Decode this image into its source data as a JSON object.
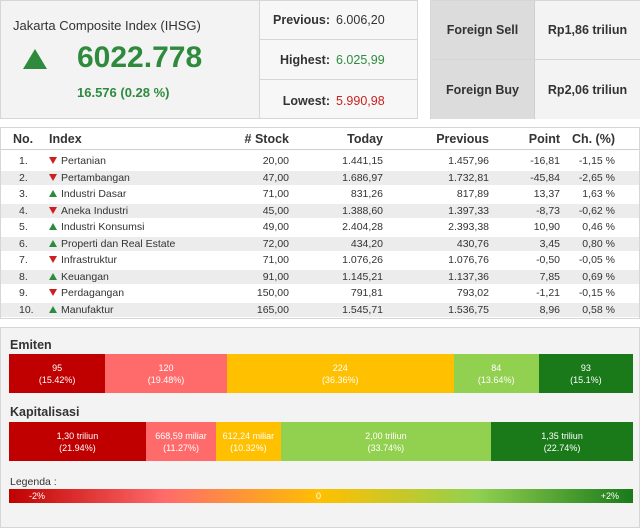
{
  "index": {
    "title": "Jakarta Composite Index (IHSG)",
    "value": "6022.778",
    "change": "16.576 (0.28 %)",
    "direction": "up"
  },
  "stats": [
    {
      "label": "Previous:",
      "value": "6.006,20",
      "color": "#333333"
    },
    {
      "label": "Highest:",
      "value": "6.025,99",
      "color": "#2e8b3d"
    },
    {
      "label": "Lowest:",
      "value": "5.990,98",
      "color": "#cc1f1f"
    }
  ],
  "foreign": [
    {
      "label": "Foreign Sell",
      "value": "Rp1,86 triliun"
    },
    {
      "label": "Foreign Buy",
      "value": "Rp2,06 triliun"
    }
  ],
  "table": {
    "headers": {
      "no": "No.",
      "index": "Index",
      "stock": "# Stock",
      "today": "Today",
      "previous": "Previous",
      "point": "Point",
      "change": "Ch. (%)"
    },
    "rows": [
      {
        "no": "1.",
        "dir": "down",
        "name": "Pertanian",
        "stock": "20,00",
        "today": "1.441,15",
        "previous": "1.457,96",
        "point": "-16,81",
        "change": "-1,15 %"
      },
      {
        "no": "2.",
        "dir": "down",
        "name": "Pertambangan",
        "stock": "47,00",
        "today": "1.686,97",
        "previous": "1.732,81",
        "point": "-45,84",
        "change": "-2,65 %"
      },
      {
        "no": "3.",
        "dir": "up",
        "name": "Industri Dasar",
        "stock": "71,00",
        "today": "831,26",
        "previous": "817,89",
        "point": "13,37",
        "change": "1,63 %"
      },
      {
        "no": "4.",
        "dir": "down",
        "name": "Aneka Industri",
        "stock": "45,00",
        "today": "1.388,60",
        "previous": "1.397,33",
        "point": "-8,73",
        "change": "-0,62 %"
      },
      {
        "no": "5.",
        "dir": "up",
        "name": "Industri Konsumsi",
        "stock": "49,00",
        "today": "2.404,28",
        "previous": "2.393,38",
        "point": "10,90",
        "change": "0,46 %"
      },
      {
        "no": "6.",
        "dir": "up",
        "name": "Properti dan Real Estate",
        "stock": "72,00",
        "today": "434,20",
        "previous": "430,76",
        "point": "3,45",
        "change": "0,80 %"
      },
      {
        "no": "7.",
        "dir": "down",
        "name": "Infrastruktur",
        "stock": "71,00",
        "today": "1.076,26",
        "previous": "1.076,76",
        "point": "-0,50",
        "change": "-0,05 %"
      },
      {
        "no": "8.",
        "dir": "up",
        "name": "Keuangan",
        "stock": "91,00",
        "today": "1.145,21",
        "previous": "1.137,36",
        "point": "7,85",
        "change": "0,69 %"
      },
      {
        "no": "9.",
        "dir": "down",
        "name": "Perdagangan",
        "stock": "150,00",
        "today": "791,81",
        "previous": "793,02",
        "point": "-1,21",
        "change": "-0,15 %"
      },
      {
        "no": "10.",
        "dir": "up",
        "name": "Manufaktur",
        "stock": "165,00",
        "today": "1.545,71",
        "previous": "1.536,75",
        "point": "8,96",
        "change": "0,58 %"
      }
    ]
  },
  "emiten": {
    "title": "Emiten",
    "segments": [
      {
        "value": "95",
        "pct": "(15.42%)",
        "share": 15.42,
        "color": "#c00000"
      },
      {
        "value": "120",
        "pct": "(19.48%)",
        "share": 19.48,
        "color": "#ff6b6b"
      },
      {
        "value": "224",
        "pct": "(36.36%)",
        "share": 36.36,
        "color": "#ffc000"
      },
      {
        "value": "84",
        "pct": "(13.64%)",
        "share": 13.64,
        "color": "#92d050"
      },
      {
        "value": "93",
        "pct": "(15.1%)",
        "share": 15.1,
        "color": "#1a7a1a"
      }
    ]
  },
  "kapitalisasi": {
    "title": "Kapitalisasi",
    "segments": [
      {
        "value": "1,30 triliun",
        "pct": "(21.94%)",
        "share": 21.94,
        "color": "#c00000"
      },
      {
        "value": "668,59 miliar",
        "pct": "(11.27%)",
        "share": 11.27,
        "color": "#ff6b6b"
      },
      {
        "value": "612,24 miliar",
        "pct": "(10.32%)",
        "share": 10.32,
        "color": "#ffc000"
      },
      {
        "value": "2,00 triliun",
        "pct": "(33.74%)",
        "share": 33.74,
        "color": "#92d050"
      },
      {
        "value": "1,35 triliun",
        "pct": "(22.74%)",
        "share": 22.74,
        "color": "#1a7a1a"
      }
    ]
  },
  "legend": {
    "title": "Legenda :",
    "min": "-2%",
    "mid": "0",
    "max": "+2%"
  }
}
